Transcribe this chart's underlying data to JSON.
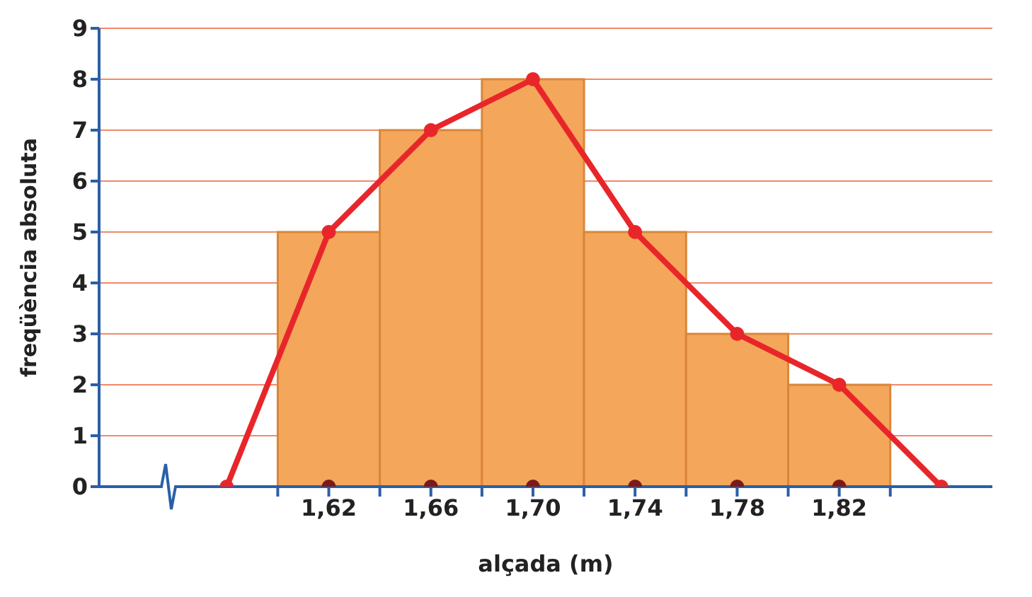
{
  "chart_data": {
    "type": "histogram",
    "xlabel": "alçada (m)",
    "ylabel": "freqüència absoluta",
    "bins": [
      1.6,
      1.64,
      1.68,
      1.72,
      1.76,
      1.8,
      1.84
    ],
    "values": [
      5,
      7,
      8,
      5,
      3,
      2
    ],
    "color": "#f4a65a",
    "xlim": [
      1.53,
      1.88
    ],
    "xticks": [
      {
        "value": 1.6,
        "label": null
      },
      {
        "value": 1.62,
        "label": "1,62"
      },
      {
        "value": 1.64,
        "label": null
      },
      {
        "value": 1.66,
        "label": "1,66"
      },
      {
        "value": 1.68,
        "label": null
      },
      {
        "value": 1.7,
        "label": "1,70"
      },
      {
        "value": 1.72,
        "label": null
      },
      {
        "value": 1.74,
        "label": "1,74"
      },
      {
        "value": 1.76,
        "label": null
      },
      {
        "value": 1.78,
        "label": "1,78"
      },
      {
        "value": 1.8,
        "label": null
      },
      {
        "value": 1.82,
        "label": "1,82"
      },
      {
        "value": 1.84,
        "label": null
      }
    ],
    "ylim": [
      0,
      9
    ],
    "yticks": [
      0,
      1,
      2,
      3,
      4,
      5,
      6,
      7,
      8,
      9
    ],
    "grid": "y",
    "series": [
      {
        "type": "line",
        "x": [
          1.58,
          1.62,
          1.66,
          1.7,
          1.74,
          1.78,
          1.82,
          1.86
        ],
        "values": [
          0,
          5,
          7,
          8,
          5,
          3,
          2,
          0
        ],
        "color": "#e8262a",
        "marker": "circle"
      },
      {
        "type": "scatter",
        "x": [
          1.62,
          1.66,
          1.7,
          1.74,
          1.78,
          1.82
        ],
        "values": [
          0,
          0,
          0,
          0,
          0,
          0
        ],
        "color": "#7a1a1a",
        "marker": "circle"
      }
    ]
  }
}
